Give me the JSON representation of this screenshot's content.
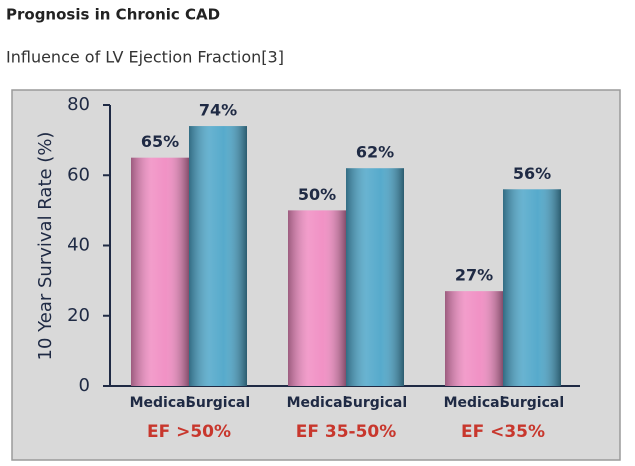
{
  "header": {
    "title": "Prognosis in Chronic CAD",
    "subtitle": "Influence of LV Ejection Fraction[3]"
  },
  "chart_data": {
    "type": "bar",
    "categories": [
      "EF >50%",
      "EF 35-50%",
      "EF <35%"
    ],
    "series": [
      {
        "name": "Medical",
        "color": "#f08cc2",
        "values": [
          65,
          50,
          27
        ],
        "value_labels": [
          "65%",
          "50%",
          "27%"
        ]
      },
      {
        "name": "Surgical",
        "color": "#4ea6c9",
        "values": [
          74,
          62,
          56
        ],
        "value_labels": [
          "74%",
          "62%",
          "56%"
        ]
      }
    ],
    "y_label": "10 Year Survival Rate (%)",
    "ylim": [
      0,
      80
    ],
    "yticks": [
      0,
      20,
      40,
      60,
      80
    ]
  }
}
